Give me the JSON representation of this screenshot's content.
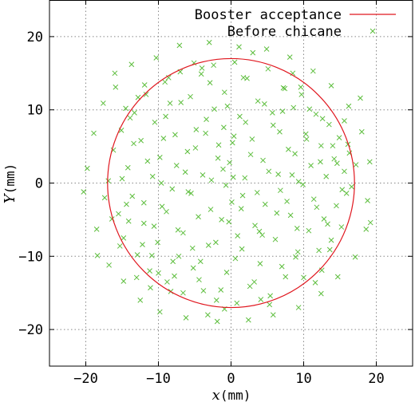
{
  "chart_data": {
    "type": "scatter",
    "title": "",
    "xlabel": {
      "var": "x",
      "unit": "(mm)"
    },
    "ylabel": {
      "var": "Y",
      "unit": "(mm)"
    },
    "xlim": [
      -25,
      25
    ],
    "ylim": [
      -25,
      25
    ],
    "xticks": [
      -20,
      -10,
      0,
      10,
      20
    ],
    "yticks": [
      -20,
      -10,
      0,
      10,
      20
    ],
    "grid": true,
    "legend_position": "top-right",
    "series": [
      {
        "name": "Booster acceptance",
        "kind": "circle",
        "center": [
          0,
          0
        ],
        "radius": 17,
        "color": "#e0161e"
      },
      {
        "name": "Before chicane",
        "kind": "points",
        "marker": "x",
        "color": "#5cbd3c",
        "points": [
          [
            -16.9,
            0.3
          ],
          [
            -16.2,
            4.5
          ],
          [
            -15.5,
            -4.2
          ],
          [
            -15.1,
            7.2
          ],
          [
            -14.8,
            -7.5
          ],
          [
            -14.2,
            2.1
          ],
          [
            -13.6,
            -1.8
          ],
          [
            -13.3,
            9.6
          ],
          [
            -12.9,
            -9.8
          ],
          [
            -12.4,
            5.8
          ],
          [
            -12.0,
            -5.5
          ],
          [
            -11.7,
            12.1
          ],
          [
            -11.2,
            -12.0
          ],
          [
            -10.8,
            0.9
          ],
          [
            -10.5,
            8.3
          ],
          [
            -10.1,
            -8.1
          ],
          [
            -9.8,
            3.5
          ],
          [
            -9.5,
            -3.2
          ],
          [
            -9.1,
            13.8
          ],
          [
            -8.8,
            -13.5
          ],
          [
            -8.4,
            10.9
          ],
          [
            -8.0,
            -10.7
          ],
          [
            -7.7,
            6.6
          ],
          [
            -7.3,
            -6.4
          ],
          [
            -7.0,
            15.2
          ],
          [
            -6.6,
            -15.0
          ],
          [
            -6.3,
            1.5
          ],
          [
            -5.9,
            -1.2
          ],
          [
            -5.6,
            11.8
          ],
          [
            -5.2,
            -11.6
          ],
          [
            -4.9,
            4.8
          ],
          [
            -4.5,
            -4.6
          ],
          [
            -4.1,
            14.9
          ],
          [
            -3.8,
            -14.7
          ],
          [
            -3.4,
            8.7
          ],
          [
            -3.1,
            -8.5
          ],
          [
            -2.7,
            0.4
          ],
          [
            -2.4,
            16.1
          ],
          [
            -2.0,
            -16.0
          ],
          [
            -1.7,
            5.2
          ],
          [
            -1.3,
            -5.0
          ],
          [
            -0.9,
            12.4
          ],
          [
            -0.6,
            -12.2
          ],
          [
            -0.2,
            2.8
          ],
          [
            0.1,
            -2.6
          ],
          [
            0.5,
            16.5
          ],
          [
            0.8,
            -16.4
          ],
          [
            1.2,
            9.1
          ],
          [
            1.5,
            -9.0
          ],
          [
            1.9,
            0.7
          ],
          [
            2.2,
            14.3
          ],
          [
            2.6,
            -14.1
          ],
          [
            2.9,
            6.0
          ],
          [
            3.3,
            -5.8
          ],
          [
            3.7,
            11.2
          ],
          [
            4.0,
            -11.0
          ],
          [
            4.4,
            3.1
          ],
          [
            4.7,
            -2.9
          ],
          [
            5.1,
            15.6
          ],
          [
            5.4,
            -15.4
          ],
          [
            5.8,
            7.9
          ],
          [
            6.1,
            -7.7
          ],
          [
            6.5,
            1.2
          ],
          [
            6.8,
            -1.0
          ],
          [
            7.2,
            13.0
          ],
          [
            7.5,
            -12.8
          ],
          [
            7.9,
            4.6
          ],
          [
            8.2,
            -4.4
          ],
          [
            8.6,
            10.3
          ],
          [
            8.9,
            -10.1
          ],
          [
            9.3,
            0.2
          ],
          [
            9.6,
            13.1
          ],
          [
            10.0,
            -12.9
          ],
          [
            10.3,
            6.7
          ],
          [
            10.7,
            -6.5
          ],
          [
            11.0,
            2.4
          ],
          [
            11.4,
            -2.2
          ],
          [
            11.7,
            9.4
          ],
          [
            12.1,
            -9.2
          ],
          [
            12.4,
            5.1
          ],
          [
            12.8,
            -4.9
          ],
          [
            13.1,
            0.9
          ],
          [
            13.5,
            8.0
          ],
          [
            13.8,
            -7.8
          ],
          [
            14.2,
            3.3
          ],
          [
            14.5,
            -3.1
          ],
          [
            14.9,
            6.2
          ],
          [
            15.2,
            -6.0
          ],
          [
            15.6,
            1.6
          ],
          [
            15.9,
            -1.4
          ],
          [
            16.3,
            4.1
          ],
          [
            16.6,
            -0.5
          ],
          [
            17.2,
            2.5
          ],
          [
            -17.4,
            -2.0
          ],
          [
            -18.9,
            6.8
          ],
          [
            -18.5,
            -6.3
          ],
          [
            -17.6,
            10.9
          ],
          [
            -16.8,
            -11.2
          ],
          [
            -19.8,
            2.0
          ],
          [
            -20.3,
            -1.2
          ],
          [
            -15.9,
            13.1
          ],
          [
            -14.8,
            -13.4
          ],
          [
            -13.7,
            16.2
          ],
          [
            -12.5,
            -16.0
          ],
          [
            -10.3,
            17.1
          ],
          [
            -9.8,
            -17.6
          ],
          [
            -7.1,
            18.8
          ],
          [
            -6.2,
            -18.4
          ],
          [
            -3.0,
            19.2
          ],
          [
            -1.9,
            -18.9
          ],
          [
            1.1,
            18.6
          ],
          [
            2.4,
            -18.7
          ],
          [
            4.9,
            18.3
          ],
          [
            5.8,
            -18.0
          ],
          [
            8.1,
            17.2
          ],
          [
            9.3,
            -17.0
          ],
          [
            11.3,
            15.3
          ],
          [
            12.4,
            -15.1
          ],
          [
            13.8,
            13.3
          ],
          [
            14.7,
            -12.8
          ],
          [
            16.2,
            10.5
          ],
          [
            17.1,
            -10.1
          ],
          [
            18.0,
            7.0
          ],
          [
            18.6,
            -6.3
          ],
          [
            19.1,
            2.9
          ],
          [
            18.8,
            -2.4
          ],
          [
            19.2,
            -5.4
          ],
          [
            17.8,
            11.6
          ],
          [
            -18.4,
            -9.9
          ],
          [
            -16.0,
            15.0
          ],
          [
            -11.1,
            -14.3
          ],
          [
            -8.6,
            14.4
          ],
          [
            -4.4,
            -13.2
          ],
          [
            -2.3,
            10.1
          ],
          [
            0.4,
            6.4
          ],
          [
            0.9,
            -7.2
          ],
          [
            -0.7,
            -0.3
          ],
          [
            0.3,
            0.8
          ],
          [
            -1.1,
            1.9
          ],
          [
            1.6,
            -1.7
          ],
          [
            -2.8,
            -3.6
          ],
          [
            2.7,
            3.9
          ],
          [
            -3.5,
            6.8
          ],
          [
            3.9,
            -6.6
          ],
          [
            -5.3,
            -8.9
          ],
          [
            5.7,
            9.6
          ],
          [
            -6.9,
            11.0
          ],
          [
            7.0,
            -11.4
          ],
          [
            -8.1,
            -0.8
          ],
          [
            8.4,
            1.1
          ],
          [
            -9.3,
            6.1
          ],
          [
            9.1,
            -6.2
          ],
          [
            -10.6,
            -5.9
          ],
          [
            10.4,
            6.0
          ],
          [
            -11.5,
            3.0
          ],
          [
            11.8,
            -3.3
          ],
          [
            -12.2,
            -8.4
          ],
          [
            12.6,
            8.8
          ],
          [
            -13.4,
            5.4
          ],
          [
            13.3,
            -5.6
          ],
          [
            -14.1,
            -5.2
          ],
          [
            14.0,
            5.1
          ],
          [
            -15.0,
            0.6
          ],
          [
            15.3,
            -0.9
          ],
          [
            -6.0,
            4.3
          ],
          [
            6.3,
            -4.1
          ],
          [
            -4.2,
            -10.7
          ],
          [
            4.6,
            10.8
          ],
          [
            -2.9,
            13.7
          ],
          [
            3.2,
            -13.5
          ],
          [
            -7.8,
            -12.7
          ],
          [
            7.4,
            12.9
          ],
          [
            -9.0,
            9.1
          ],
          [
            9.2,
            -9.4
          ],
          [
            -1.4,
            -14.6
          ],
          [
            1.7,
            14.4
          ],
          [
            -0.5,
            10.5
          ],
          [
            0.6,
            -10.3
          ],
          [
            -3.9,
            1.1
          ],
          [
            3.6,
            -1.3
          ],
          [
            -5.5,
            -1.4
          ],
          [
            5.2,
            1.6
          ],
          [
            -7.5,
            2.4
          ],
          [
            7.7,
            -2.5
          ],
          [
            -8.9,
            -3.9
          ],
          [
            8.8,
            4.0
          ],
          [
            -10.9,
            -9.9
          ],
          [
            10.8,
            10.1
          ],
          [
            -12.8,
            11.7
          ],
          [
            12.5,
            -11.9
          ],
          [
            -13.9,
            8.9
          ],
          [
            13.6,
            -9.1
          ],
          [
            -2.1,
            -8.1
          ],
          [
            2.0,
            8.3
          ],
          [
            -4.8,
            7.3
          ],
          [
            4.3,
            -7.1
          ],
          [
            -6.6,
            -6.8
          ],
          [
            6.7,
            7.0
          ],
          [
            -0.3,
            -5.3
          ],
          [
            0.2,
            5.5
          ],
          [
            -1.8,
            3.4
          ],
          [
            1.4,
            -3.5
          ],
          [
            -8.3,
            -14.8
          ],
          [
            8.5,
            15.0
          ],
          [
            -11.9,
            13.4
          ],
          [
            11.6,
            -13.6
          ],
          [
            -15.3,
            -8.6
          ],
          [
            15.6,
            8.5
          ],
          [
            -16.4,
            -4.9
          ],
          [
            16.1,
            5.3
          ],
          [
            -9.6,
            0.0
          ],
          [
            9.9,
            -0.2
          ],
          [
            -3.2,
            -18.0
          ],
          [
            3.0,
            17.8
          ],
          [
            -0.9,
            -17.2
          ],
          [
            -5.1,
            16.4
          ],
          [
            5.3,
            -16.6
          ],
          [
            -12.0,
            -2.7
          ],
          [
            12.3,
            2.9
          ],
          [
            -14.5,
            10.2
          ],
          [
            -4.0,
            15.7
          ],
          [
            4.1,
            -15.9
          ],
          [
            -7.2,
            -10.0
          ],
          [
            7.1,
            9.8
          ],
          [
            -10.0,
            -12.3
          ],
          [
            9.7,
            12.1
          ],
          [
            -13.0,
            -12.9
          ],
          [
            -14.4,
            -2.9
          ],
          [
            14.6,
            2.7
          ],
          [
            -1.0,
            7.6
          ]
        ]
      }
    ]
  }
}
